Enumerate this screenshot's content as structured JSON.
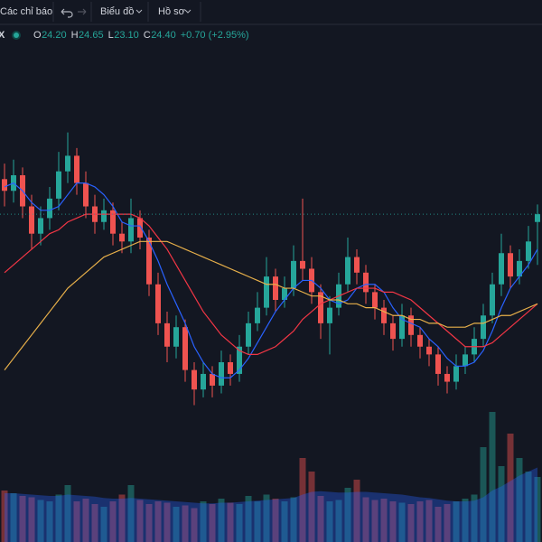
{
  "toolbar": {
    "indicators": "Các chỉ báo",
    "chart": "Biểu đồ",
    "profile": "Hồ sơ"
  },
  "legend": {
    "symbol": "X",
    "items": [
      {
        "key": "O",
        "value": "24.20"
      },
      {
        "key": "H",
        "value": "24.65"
      },
      {
        "key": "L",
        "value": "23.10"
      },
      {
        "key": "C",
        "value": "24.40"
      }
    ],
    "change": "+0.70 (+2.95%)"
  },
  "chart_data": {
    "type": "candlestick",
    "up_color": "#26a69a",
    "down_color": "#ef5350",
    "ylim": [
      19,
      27
    ],
    "vlim": [
      0,
      1000
    ],
    "open": [
      25.3,
      25.0,
      25.4,
      24.6,
      23.9,
      24.3,
      24.8,
      25.5,
      25.9,
      25.2,
      24.6,
      24.2,
      24.5,
      23.9,
      23.7,
      24.3,
      23.8,
      22.6,
      21.6,
      21.0,
      21.5,
      20.4,
      19.9,
      20.3,
      20.0,
      20.6,
      20.3,
      21.0,
      21.6,
      22.0,
      22.8,
      22.2,
      22.5,
      23.2,
      23.0,
      22.4,
      21.6,
      22.0,
      22.6,
      23.3,
      22.9,
      22.4,
      22.0,
      21.6,
      21.2,
      21.8,
      21.3,
      21.0,
      20.8,
      20.3,
      20.1,
      20.5,
      20.8,
      21.2,
      21.8,
      22.6,
      23.4,
      22.8,
      23.2,
      24.2
    ],
    "high": [
      25.7,
      25.8,
      25.6,
      24.9,
      24.6,
      25.1,
      26.0,
      26.5,
      26.1,
      25.5,
      24.9,
      24.8,
      24.7,
      24.2,
      24.8,
      24.5,
      24.0,
      22.9,
      21.9,
      21.8,
      21.7,
      20.6,
      20.6,
      20.5,
      20.9,
      20.8,
      21.3,
      21.9,
      22.4,
      23.3,
      23.0,
      22.8,
      23.6,
      24.8,
      23.3,
      22.6,
      22.3,
      22.9,
      23.8,
      23.5,
      23.1,
      22.6,
      22.2,
      21.8,
      22.1,
      22.0,
      21.5,
      21.2,
      21.0,
      20.5,
      20.8,
      21.0,
      21.5,
      22.1,
      22.9,
      23.9,
      23.6,
      23.5,
      24.1,
      24.65
    ],
    "low": [
      24.6,
      24.7,
      24.3,
      23.5,
      23.6,
      24.0,
      24.5,
      25.2,
      24.9,
      24.3,
      23.9,
      24.0,
      23.6,
      23.4,
      23.4,
      23.5,
      22.3,
      21.3,
      20.6,
      20.7,
      20.1,
      19.5,
      19.7,
      19.7,
      19.8,
      20.0,
      20.1,
      20.8,
      21.4,
      21.8,
      21.9,
      22.0,
      22.3,
      22.7,
      22.1,
      21.2,
      20.8,
      21.8,
      22.4,
      22.6,
      22.1,
      21.7,
      21.3,
      20.9,
      21.0,
      21.0,
      20.7,
      20.5,
      20.0,
      19.8,
      19.9,
      20.3,
      20.6,
      21.0,
      21.6,
      22.3,
      22.5,
      22.6,
      23.0,
      23.1
    ],
    "close": [
      25.0,
      25.4,
      24.6,
      23.9,
      24.3,
      24.8,
      25.5,
      25.9,
      25.2,
      24.6,
      24.2,
      24.5,
      23.9,
      23.7,
      24.3,
      23.8,
      22.6,
      21.6,
      21.0,
      21.5,
      20.4,
      19.9,
      20.3,
      20.0,
      20.6,
      20.3,
      21.0,
      21.6,
      22.0,
      22.8,
      22.2,
      22.5,
      23.2,
      23.0,
      22.4,
      21.6,
      22.0,
      22.6,
      23.3,
      22.9,
      22.4,
      22.0,
      21.6,
      21.2,
      21.8,
      21.3,
      21.0,
      20.8,
      20.3,
      20.1,
      20.5,
      20.8,
      21.2,
      21.8,
      22.6,
      23.4,
      22.8,
      23.2,
      23.7,
      24.4
    ],
    "volume": [
      380,
      360,
      340,
      330,
      310,
      300,
      350,
      420,
      300,
      320,
      280,
      260,
      300,
      350,
      420,
      310,
      280,
      300,
      290,
      260,
      270,
      250,
      300,
      280,
      320,
      290,
      280,
      340,
      300,
      350,
      320,
      300,
      330,
      620,
      520,
      340,
      300,
      310,
      400,
      460,
      330,
      310,
      320,
      300,
      290,
      280,
      300,
      310,
      260,
      280,
      300,
      320,
      350,
      700,
      960,
      560,
      800,
      620,
      520,
      480
    ],
    "volume_ma": {
      "color": "#2962ff",
      "values": [
        360,
        360,
        355,
        350,
        345,
        340,
        340,
        350,
        345,
        340,
        335,
        325,
        320,
        320,
        325,
        320,
        315,
        310,
        305,
        300,
        295,
        290,
        285,
        285,
        290,
        290,
        295,
        300,
        305,
        310,
        315,
        320,
        325,
        350,
        370,
        375,
        370,
        365,
        365,
        370,
        370,
        365,
        360,
        355,
        350,
        340,
        330,
        325,
        315,
        305,
        300,
        300,
        305,
        330,
        380,
        410,
        450,
        490,
        520,
        550
      ]
    },
    "moving_averages": [
      {
        "color": "#2962ff",
        "values": [
          25.1,
          25.2,
          25.0,
          24.7,
          24.5,
          24.5,
          24.6,
          24.9,
          25.2,
          25.2,
          25.1,
          24.9,
          24.6,
          24.2,
          24.1,
          24.1,
          23.7,
          23.2,
          22.6,
          22.1,
          21.6,
          21.0,
          20.6,
          20.3,
          20.2,
          20.2,
          20.4,
          20.7,
          21.1,
          21.5,
          21.9,
          22.2,
          22.5,
          22.7,
          22.7,
          22.5,
          22.2,
          22.1,
          22.2,
          22.5,
          22.6,
          22.6,
          22.4,
          22.0,
          21.7,
          21.6,
          21.5,
          21.2,
          21.0,
          20.7,
          20.5,
          20.5,
          20.6,
          20.9,
          21.4,
          22.0,
          22.5,
          22.8,
          23.1,
          23.5
        ]
      },
      {
        "color": "#f23645",
        "values": [
          22.9,
          23.1,
          23.3,
          23.5,
          23.7,
          23.9,
          24.0,
          24.2,
          24.3,
          24.4,
          24.4,
          24.4,
          24.4,
          24.4,
          24.4,
          24.3,
          24.1,
          23.8,
          23.5,
          23.1,
          22.7,
          22.3,
          21.9,
          21.6,
          21.3,
          21.1,
          20.9,
          20.8,
          20.8,
          20.9,
          21.0,
          21.2,
          21.4,
          21.7,
          21.9,
          22.1,
          22.2,
          22.3,
          22.4,
          22.5,
          22.5,
          22.5,
          22.4,
          22.4,
          22.3,
          22.2,
          22.0,
          21.8,
          21.6,
          21.4,
          21.2,
          21.0,
          21.0,
          21.0,
          21.1,
          21.3,
          21.5,
          21.7,
          21.9,
          22.1
        ]
      },
      {
        "color": "#e8b04a",
        "values": [
          20.4,
          20.7,
          21.0,
          21.3,
          21.6,
          21.9,
          22.2,
          22.5,
          22.7,
          22.9,
          23.1,
          23.3,
          23.4,
          23.5,
          23.6,
          23.7,
          23.7,
          23.7,
          23.7,
          23.6,
          23.5,
          23.4,
          23.3,
          23.2,
          23.1,
          23.0,
          22.9,
          22.8,
          22.7,
          22.6,
          22.6,
          22.5,
          22.5,
          22.4,
          22.3,
          22.3,
          22.2,
          22.2,
          22.1,
          22.1,
          22.0,
          22.0,
          21.9,
          21.8,
          21.8,
          21.7,
          21.7,
          21.6,
          21.6,
          21.5,
          21.5,
          21.5,
          21.6,
          21.6,
          21.7,
          21.8,
          21.8,
          21.9,
          22.0,
          22.1
        ]
      }
    ]
  }
}
